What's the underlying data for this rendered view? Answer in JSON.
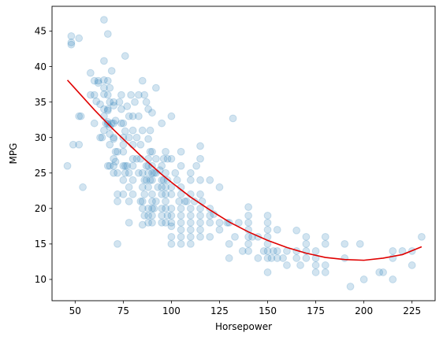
{
  "chart_data": {
    "type": "scatter",
    "title": "",
    "xlabel": "Horsepower",
    "ylabel": "MPG",
    "xlim": [
      38,
      237
    ],
    "ylim": [
      7,
      48.5
    ],
    "xticks": [
      50,
      75,
      100,
      125,
      150,
      175,
      200,
      225
    ],
    "yticks": [
      10,
      15,
      20,
      25,
      30,
      35,
      40,
      45
    ],
    "grid": false,
    "legend": "none",
    "series": [
      {
        "kind": "scatter",
        "color": "#1f77b4",
        "alpha": 0.2,
        "points": [
          [
            46,
            26
          ],
          [
            48,
            43.4
          ],
          [
            48,
            44.3
          ],
          [
            48,
            43.1
          ],
          [
            49,
            29
          ],
          [
            52,
            29
          ],
          [
            52,
            44
          ],
          [
            52,
            33
          ],
          [
            53,
            33
          ],
          [
            54,
            23
          ],
          [
            58,
            36
          ],
          [
            58,
            39.1
          ],
          [
            60,
            38
          ],
          [
            60,
            32
          ],
          [
            60,
            36
          ],
          [
            61,
            35.1
          ],
          [
            62,
            37.7
          ],
          [
            62,
            38
          ],
          [
            63,
            34.7
          ],
          [
            63,
            30
          ],
          [
            64,
            30
          ],
          [
            65,
            46.6
          ],
          [
            65,
            40.8
          ],
          [
            65,
            37
          ],
          [
            65,
            38.1
          ],
          [
            65,
            36.1
          ],
          [
            65,
            34
          ],
          [
            65,
            33
          ],
          [
            65,
            31
          ],
          [
            66,
            32
          ],
          [
            67,
            44.6
          ],
          [
            67,
            38
          ],
          [
            67,
            36
          ],
          [
            67,
            34
          ],
          [
            67,
            31.9
          ],
          [
            67,
            32.2
          ],
          [
            67,
            33.8
          ],
          [
            67,
            26
          ],
          [
            68,
            37
          ],
          [
            68,
            35
          ],
          [
            68,
            31.5
          ],
          [
            68,
            30.5
          ],
          [
            68,
            29
          ],
          [
            68,
            26
          ],
          [
            69,
            32
          ],
          [
            69,
            39.4
          ],
          [
            70,
            35
          ],
          [
            70,
            34.5
          ],
          [
            70,
            32
          ],
          [
            70,
            30
          ],
          [
            70,
            29.8
          ],
          [
            70,
            27
          ],
          [
            70,
            25
          ],
          [
            70,
            26
          ],
          [
            71,
            28
          ],
          [
            71,
            32.4
          ],
          [
            71,
            26.6
          ],
          [
            72,
            15
          ],
          [
            72,
            28
          ],
          [
            72,
            25
          ],
          [
            72,
            21
          ],
          [
            72,
            22
          ],
          [
            73,
            35
          ],
          [
            74,
            36
          ],
          [
            74,
            34
          ],
          [
            74,
            32
          ],
          [
            75,
            30
          ],
          [
            75,
            32
          ],
          [
            75,
            29
          ],
          [
            75,
            28
          ],
          [
            75,
            26
          ],
          [
            75,
            24
          ],
          [
            75,
            22
          ],
          [
            76,
            41.5
          ],
          [
            76,
            30.9
          ],
          [
            76,
            26
          ],
          [
            76,
            25
          ],
          [
            77,
            34.4
          ],
          [
            77,
            26
          ],
          [
            78,
            33
          ],
          [
            78,
            30
          ],
          [
            78,
            25
          ],
          [
            78,
            23
          ],
          [
            78,
            21
          ],
          [
            78,
            18
          ],
          [
            79,
            36
          ],
          [
            80,
            33
          ],
          [
            80,
            31
          ],
          [
            80,
            29
          ],
          [
            80,
            27
          ],
          [
            80,
            26
          ],
          [
            80,
            24
          ],
          [
            80,
            22
          ],
          [
            81,
            35
          ],
          [
            82,
            30
          ],
          [
            82,
            27
          ],
          [
            83,
            36
          ],
          [
            83,
            33
          ],
          [
            83,
            25
          ],
          [
            84,
            29
          ],
          [
            84,
            27
          ],
          [
            84,
            21
          ],
          [
            85,
            38
          ],
          [
            85,
            31
          ],
          [
            85,
            25
          ],
          [
            85,
            23
          ],
          [
            85,
            21
          ],
          [
            85,
            20
          ],
          [
            85,
            17.7
          ],
          [
            86,
            36
          ],
          [
            86,
            24
          ],
          [
            86,
            22
          ],
          [
            86,
            19
          ],
          [
            87,
            35
          ],
          [
            87,
            26
          ],
          [
            87,
            24
          ],
          [
            88,
            34
          ],
          [
            88,
            29.8
          ],
          [
            88,
            27
          ],
          [
            88,
            26
          ],
          [
            88,
            25
          ],
          [
            88,
            23
          ],
          [
            88,
            20
          ],
          [
            88,
            19
          ],
          [
            88,
            18
          ],
          [
            89,
            31
          ],
          [
            89,
            28
          ],
          [
            89,
            24
          ],
          [
            90,
            33.5
          ],
          [
            90,
            28
          ],
          [
            90,
            26
          ],
          [
            90,
            25
          ],
          [
            90,
            24
          ],
          [
            90,
            22
          ],
          [
            90,
            21
          ],
          [
            90,
            20
          ],
          [
            90,
            19
          ],
          [
            90,
            18
          ],
          [
            91,
            25
          ],
          [
            91,
            20
          ],
          [
            92,
            37
          ],
          [
            92,
            27
          ],
          [
            92,
            25
          ],
          [
            92,
            21
          ],
          [
            93,
            23
          ],
          [
            94,
            25.4
          ],
          [
            95,
            32
          ],
          [
            95,
            26
          ],
          [
            95,
            24
          ],
          [
            95,
            23
          ],
          [
            95,
            22
          ],
          [
            95,
            20
          ],
          [
            95,
            19
          ],
          [
            95,
            18
          ],
          [
            96,
            27
          ],
          [
            96,
            24
          ],
          [
            97,
            28
          ],
          [
            97,
            25
          ],
          [
            97,
            23
          ],
          [
            97,
            22
          ],
          [
            97,
            21
          ],
          [
            97,
            20
          ],
          [
            97,
            18
          ],
          [
            98,
            27
          ],
          [
            98,
            24
          ],
          [
            98,
            19
          ],
          [
            100,
            33
          ],
          [
            100,
            27
          ],
          [
            100,
            23
          ],
          [
            100,
            22
          ],
          [
            100,
            20
          ],
          [
            100,
            19
          ],
          [
            100,
            18
          ],
          [
            100,
            17.5
          ],
          [
            100,
            16
          ],
          [
            100,
            15
          ],
          [
            102,
            25
          ],
          [
            103,
            24
          ],
          [
            104,
            21
          ],
          [
            105,
            28
          ],
          [
            105,
            26
          ],
          [
            105,
            23
          ],
          [
            105,
            22
          ],
          [
            105,
            20
          ],
          [
            105,
            19
          ],
          [
            105,
            18
          ],
          [
            105,
            17
          ],
          [
            105,
            16
          ],
          [
            105,
            15
          ],
          [
            107,
            21
          ],
          [
            108,
            21
          ],
          [
            110,
            25
          ],
          [
            110,
            24
          ],
          [
            110,
            22
          ],
          [
            110,
            20
          ],
          [
            110,
            19
          ],
          [
            110,
            18
          ],
          [
            110,
            17
          ],
          [
            110,
            16
          ],
          [
            110,
            15
          ],
          [
            112,
            21
          ],
          [
            113,
            26
          ],
          [
            115,
            28.8
          ],
          [
            115,
            27
          ],
          [
            115,
            24
          ],
          [
            115,
            22
          ],
          [
            115,
            20
          ],
          [
            115,
            19
          ],
          [
            115,
            18
          ],
          [
            115,
            17
          ],
          [
            115,
            16
          ],
          [
            116,
            21
          ],
          [
            120,
            24
          ],
          [
            120,
            20
          ],
          [
            120,
            19
          ],
          [
            120,
            18
          ],
          [
            120,
            16
          ],
          [
            122,
            19.2
          ],
          [
            125,
            23
          ],
          [
            125,
            18
          ],
          [
            125,
            17
          ],
          [
            129,
            18
          ],
          [
            130,
            15
          ],
          [
            130,
            13
          ],
          [
            130,
            18
          ],
          [
            132,
            32.7
          ],
          [
            133,
            16
          ],
          [
            135,
            18
          ],
          [
            137,
            14
          ],
          [
            140,
            20.2
          ],
          [
            140,
            19
          ],
          [
            140,
            18
          ],
          [
            140,
            17
          ],
          [
            140,
            16
          ],
          [
            140,
            15
          ],
          [
            140,
            14
          ],
          [
            142,
            16
          ],
          [
            145,
            16
          ],
          [
            145,
            13
          ],
          [
            148,
            14
          ],
          [
            150,
            19
          ],
          [
            150,
            18
          ],
          [
            150,
            17
          ],
          [
            150,
            16
          ],
          [
            150,
            15
          ],
          [
            150,
            14
          ],
          [
            150,
            13
          ],
          [
            150,
            11
          ],
          [
            152,
            13
          ],
          [
            153,
            14
          ],
          [
            155,
            13
          ],
          [
            155,
            14
          ],
          [
            155,
            17
          ],
          [
            158,
            13
          ],
          [
            160,
            14
          ],
          [
            160,
            12
          ],
          [
            165,
            14
          ],
          [
            165,
            16.9
          ],
          [
            165,
            13
          ],
          [
            167,
            12
          ],
          [
            170,
            14
          ],
          [
            170,
            15
          ],
          [
            170,
            16
          ],
          [
            170,
            13
          ],
          [
            175,
            14
          ],
          [
            175,
            12
          ],
          [
            175,
            13
          ],
          [
            175,
            11
          ],
          [
            180,
            16
          ],
          [
            180,
            15
          ],
          [
            180,
            12
          ],
          [
            180,
            11
          ],
          [
            190,
            13
          ],
          [
            190,
            15
          ],
          [
            193,
            9
          ],
          [
            198,
            15
          ],
          [
            200,
            10
          ],
          [
            208,
            11
          ],
          [
            210,
            11
          ],
          [
            215,
            10
          ],
          [
            215,
            13
          ],
          [
            215,
            14
          ],
          [
            220,
            14
          ],
          [
            225,
            12
          ],
          [
            225,
            14
          ],
          [
            230,
            16
          ]
        ]
      },
      {
        "kind": "line",
        "color": "#e00000",
        "x": [
          46,
          50,
          55,
          60,
          65,
          70,
          75,
          80,
          85,
          90,
          95,
          100,
          110,
          120,
          130,
          140,
          150,
          160,
          170,
          180,
          190,
          200,
          210,
          220,
          230
        ],
        "y": [
          38.1,
          36.9,
          35.4,
          33.9,
          32.5,
          31.1,
          29.8,
          28.5,
          27.2,
          26,
          24.8,
          23.7,
          21.6,
          19.8,
          18.1,
          16.7,
          15.5,
          14.5,
          13.7,
          13.1,
          12.8,
          12.7,
          13,
          13.5,
          14.6
        ]
      }
    ]
  }
}
